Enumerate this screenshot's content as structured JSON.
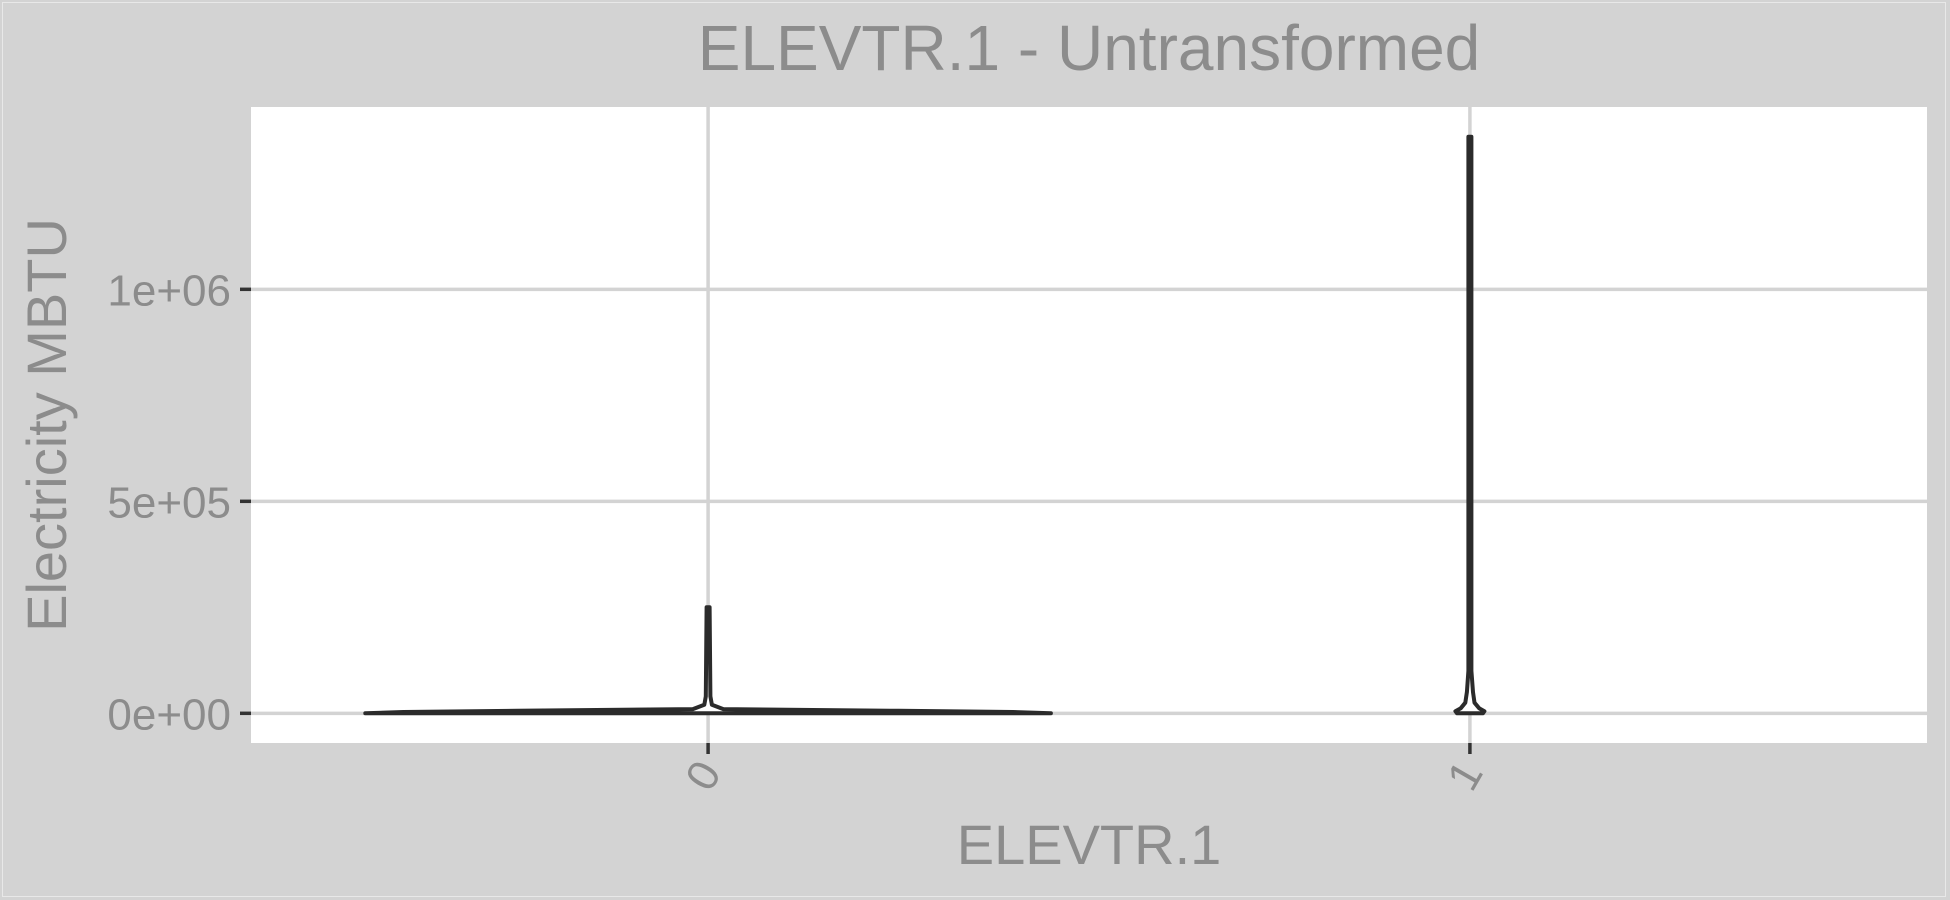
{
  "chart_data": {
    "type": "violin",
    "title": "ELEVTR.1 - Untransformed",
    "xlabel": "ELEVTR.1",
    "ylabel": "Electricity MBTU",
    "categories": [
      "0",
      "1"
    ],
    "y_ticks": [
      {
        "value": 0,
        "label": "0e+00"
      },
      {
        "value": 500000,
        "label": "5e+05"
      },
      {
        "value": 1000000,
        "label": "1e+06"
      }
    ],
    "ylim": [
      -70000,
      1430000
    ],
    "grid": true,
    "series": [
      {
        "category": "0",
        "min": 0,
        "max": 250000,
        "density": [
          {
            "y": 0,
            "w": 0.45
          },
          {
            "y": 3000,
            "w": 0.4
          },
          {
            "y": 6000,
            "w": 0.25
          },
          {
            "y": 10000,
            "w": 0.02
          },
          {
            "y": 20000,
            "w": 0.005
          },
          {
            "y": 40000,
            "w": 0.003
          },
          {
            "y": 250000,
            "w": 0.002
          }
        ]
      },
      {
        "category": "1",
        "min": 0,
        "max": 1360000,
        "density": [
          {
            "y": 0,
            "w": 0.017
          },
          {
            "y": 5000,
            "w": 0.019
          },
          {
            "y": 12000,
            "w": 0.012
          },
          {
            "y": 25000,
            "w": 0.006
          },
          {
            "y": 50000,
            "w": 0.004
          },
          {
            "y": 100000,
            "w": 0.002
          },
          {
            "y": 1360000,
            "w": 0.002
          }
        ]
      }
    ],
    "colors": {
      "panel": "#ffffff",
      "background": "#d3d3d3",
      "grid": "#d3d3d3",
      "violin": "#2b2b2b",
      "text": "#8c8c8c"
    }
  }
}
